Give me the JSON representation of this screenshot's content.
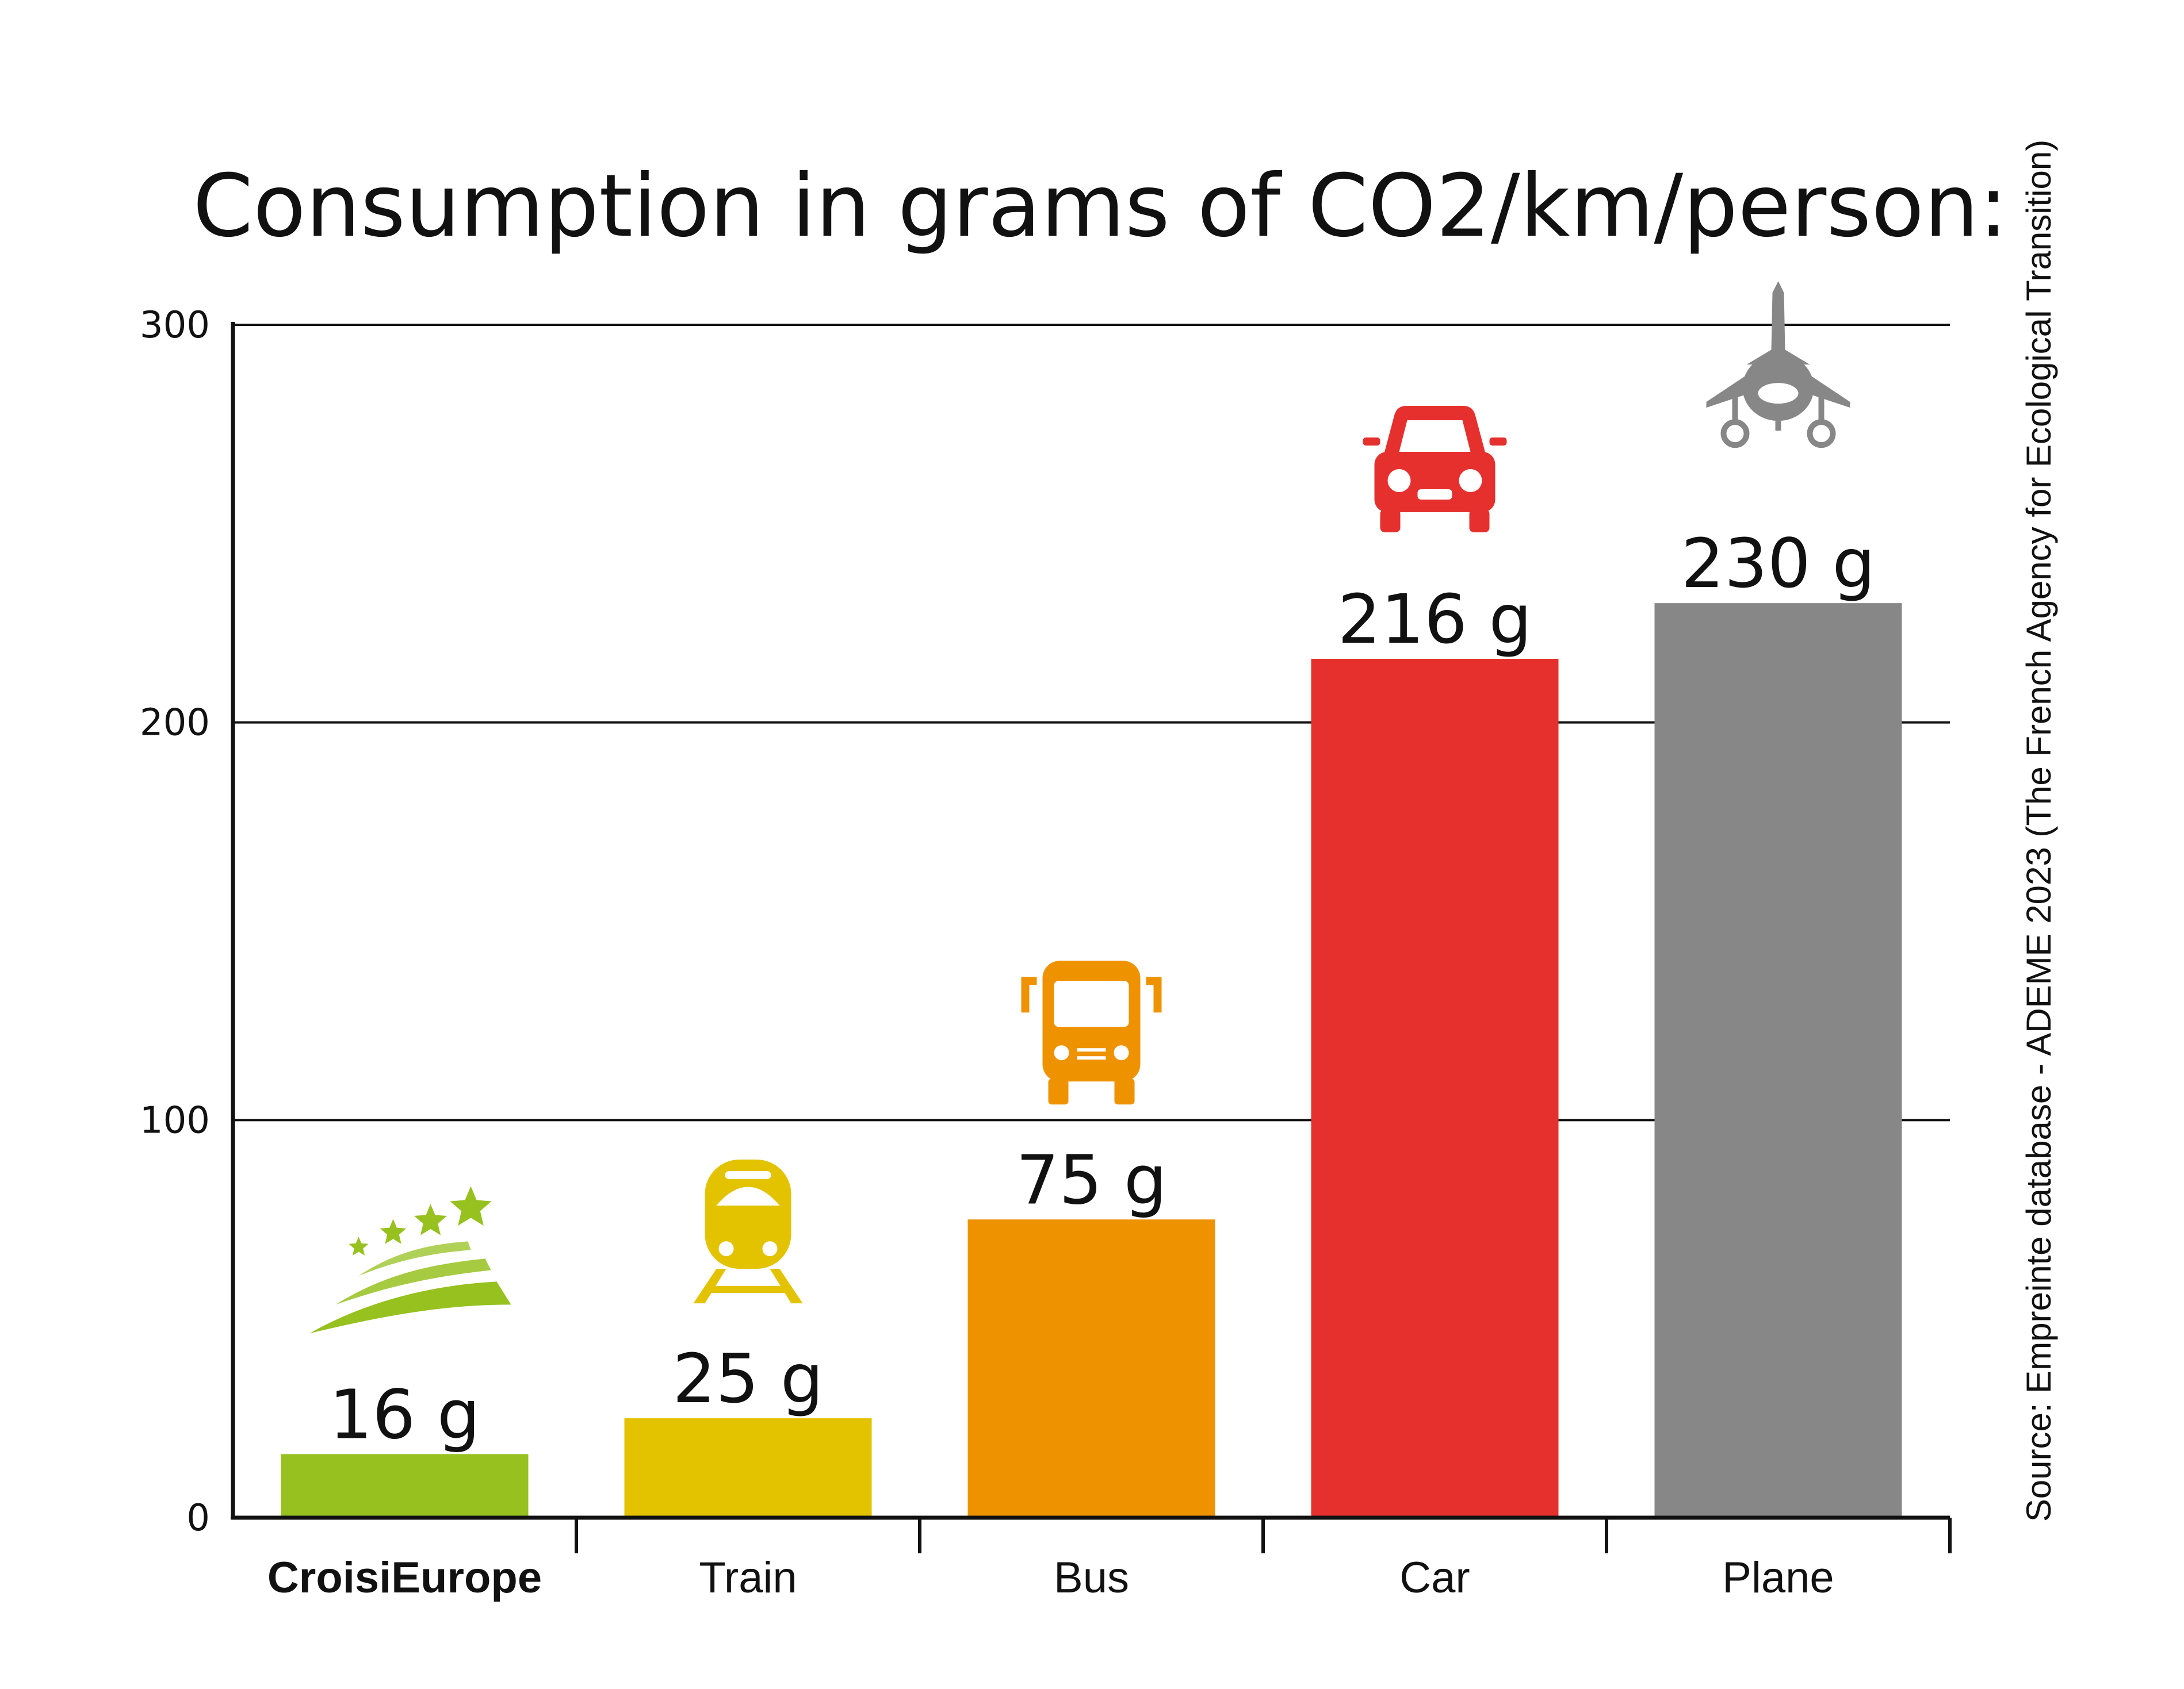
{
  "chart_data": {
    "type": "bar",
    "title": "Consumption in grams of CO2/km/person:",
    "ylim": [
      0,
      300
    ],
    "yticks": [
      "0",
      "100",
      "200",
      "300"
    ],
    "grid": true,
    "categories": [
      "CroisiEurope",
      "Train",
      "Bus",
      "Car",
      "Plane"
    ],
    "values": [
      16,
      25,
      75,
      216,
      230
    ],
    "value_labels": [
      "16 g",
      "25 g",
      "75 g",
      "216 g",
      "230 g"
    ],
    "colors": [
      "#96c11f",
      "#e3c300",
      "#ef9200",
      "#e5302d",
      "#878787"
    ],
    "icons": [
      "cruise-ship-icon",
      "train-icon",
      "bus-icon",
      "car-icon",
      "plane-icon"
    ],
    "source": "Source: Empreinte database - ADEME 2023 (The French Agency for Ecological Transition)"
  }
}
